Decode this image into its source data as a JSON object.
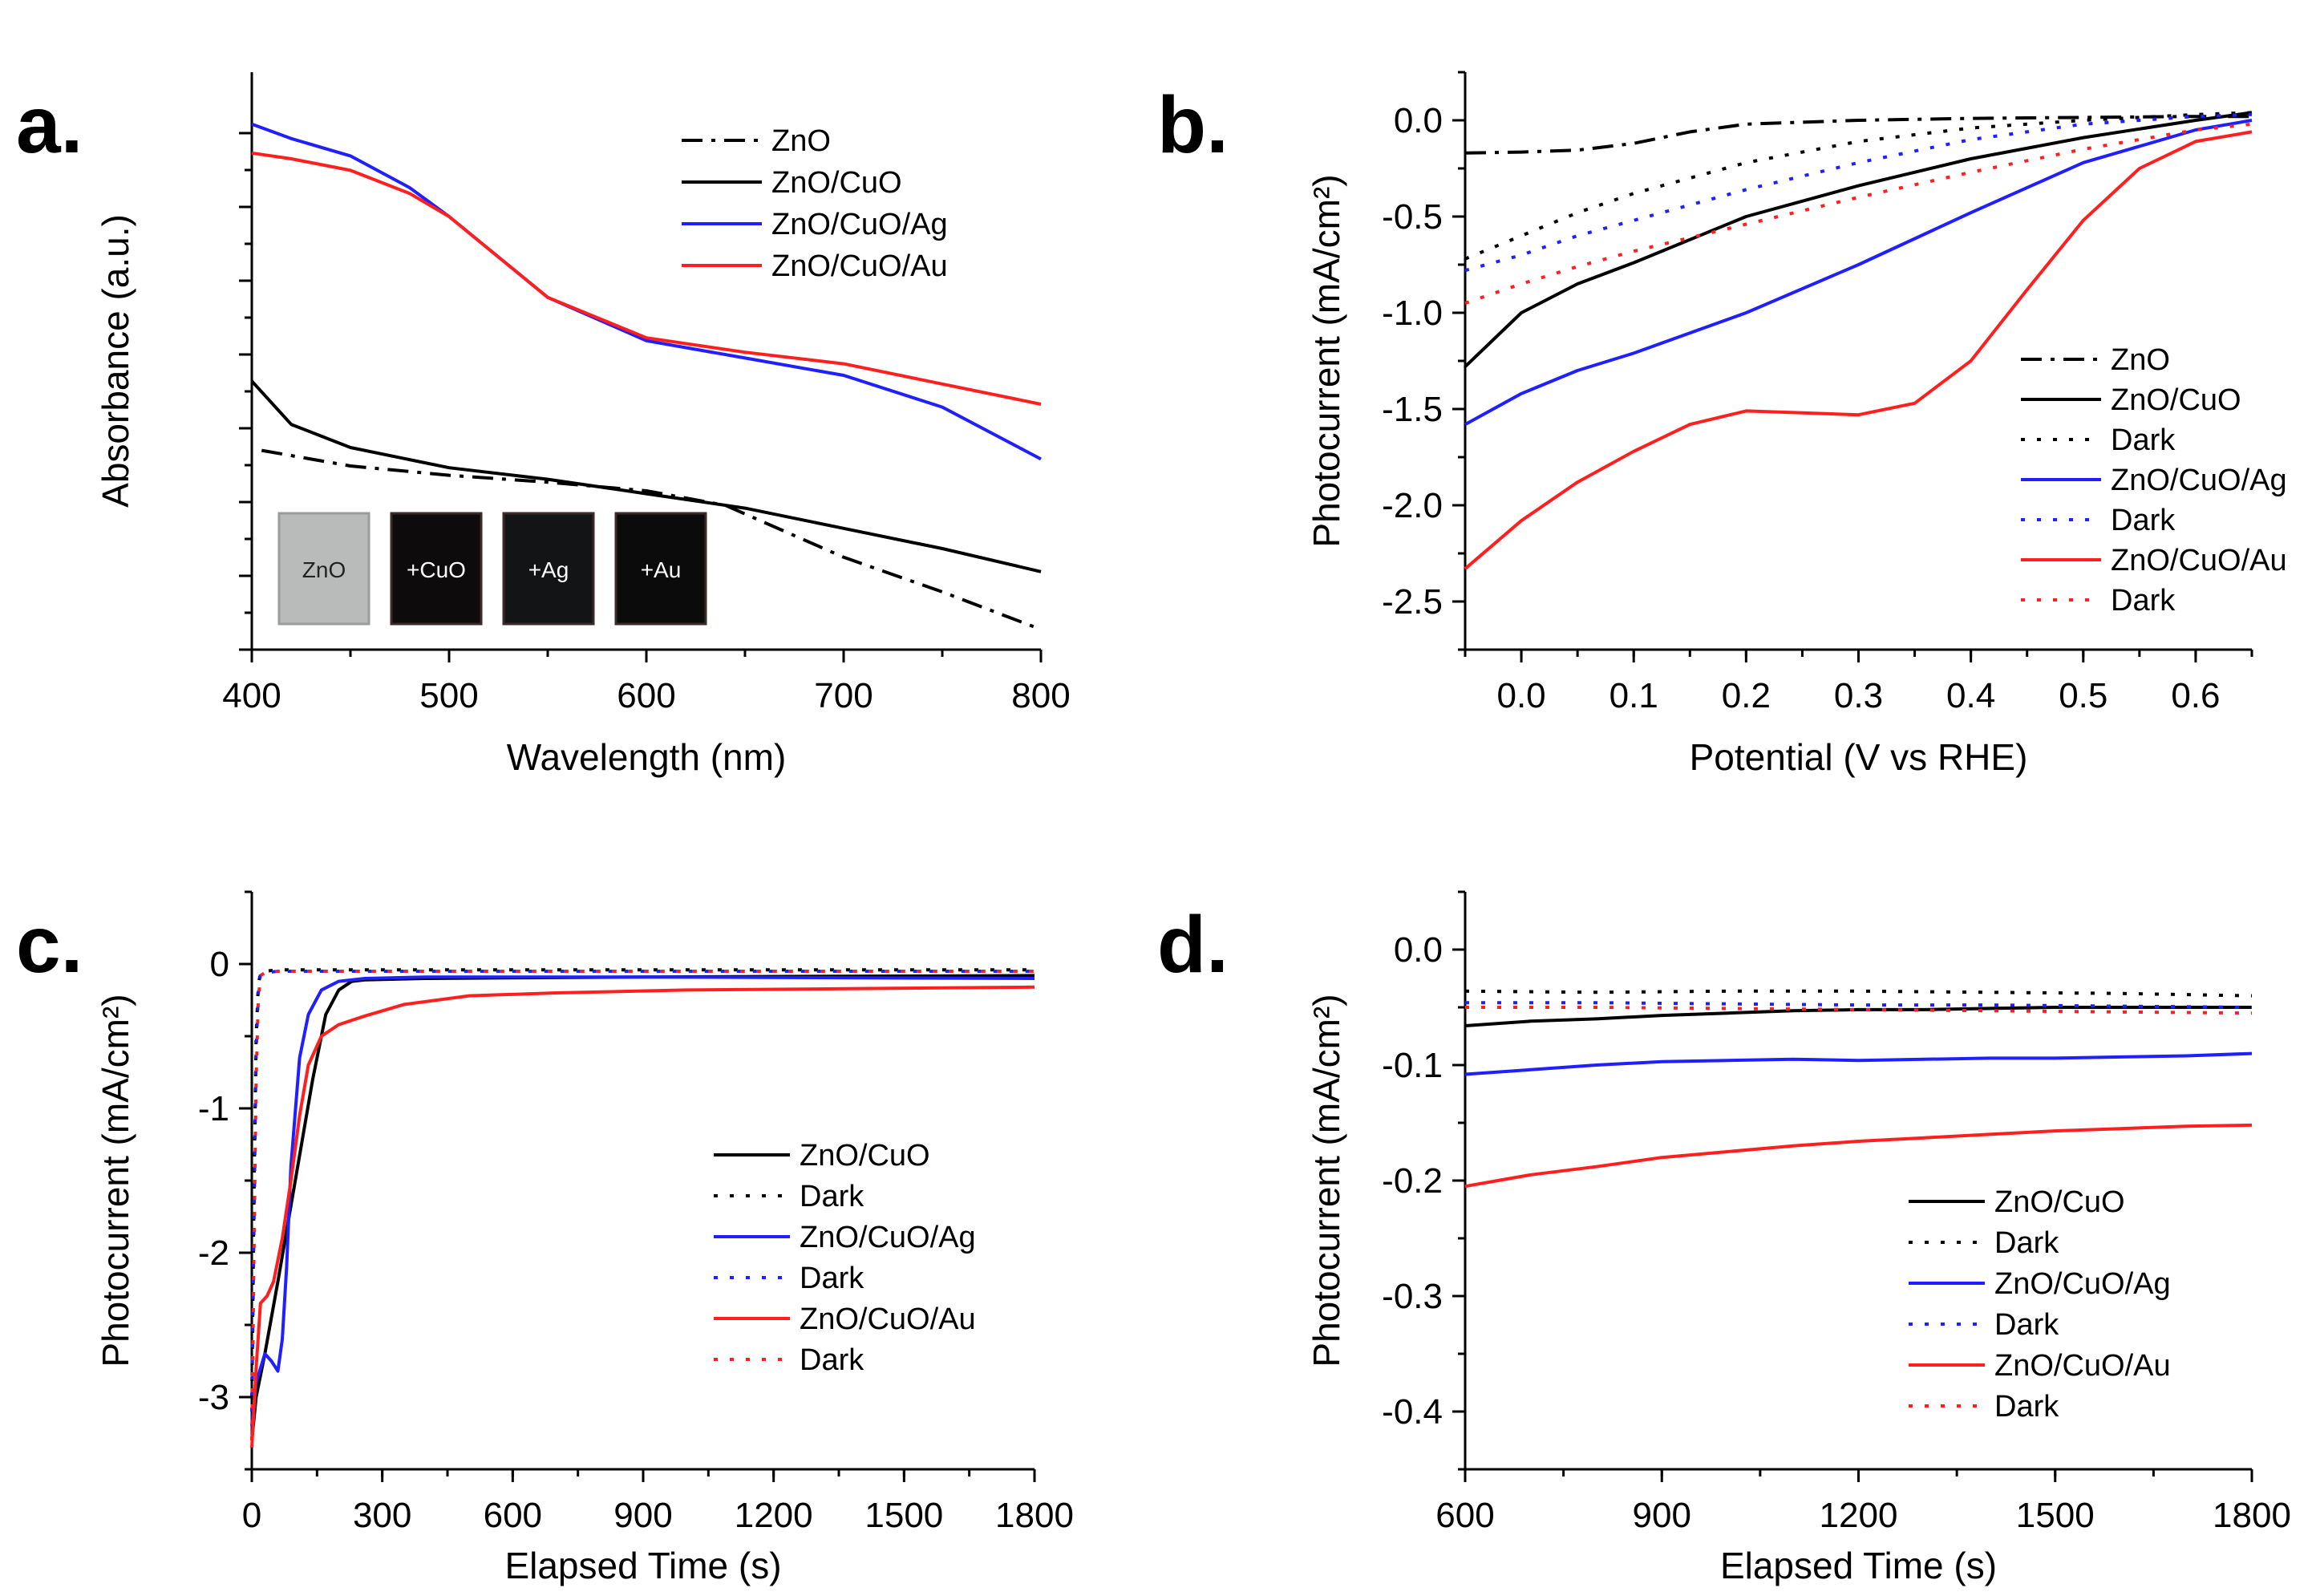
{
  "chart_data": [
    {
      "panel": "a.",
      "type": "line",
      "xlabel": "Wavelength (nm)",
      "ylabel": "Absorbance (a.u.)",
      "xlim": [
        400,
        800
      ],
      "ylim": [
        0,
        1
      ],
      "xticks": [
        "400",
        "500",
        "600",
        "700",
        "800"
      ],
      "show_y_tick_labels": false,
      "legend": "top-right",
      "series": [
        {
          "name": "ZnO",
          "color": "#000000",
          "dash": "dashdot",
          "x": [
            405,
            450,
            500,
            550,
            600,
            640,
            670,
            700,
            750,
            800
          ],
          "y": [
            0.345,
            0.318,
            0.302,
            0.29,
            0.275,
            0.25,
            0.205,
            0.16,
            0.1,
            0.035
          ]
        },
        {
          "name": "ZnO/CuO",
          "color": "#000000",
          "dash": "solid",
          "x": [
            400,
            420,
            450,
            500,
            550,
            600,
            650,
            700,
            750,
            800
          ],
          "y": [
            0.465,
            0.39,
            0.35,
            0.315,
            0.295,
            0.27,
            0.245,
            0.21,
            0.175,
            0.135
          ]
        },
        {
          "name": "ZnO/CuO/Ag",
          "color": "#1f1fff",
          "dash": "solid",
          "x": [
            400,
            420,
            450,
            480,
            500,
            550,
            600,
            650,
            700,
            750,
            800
          ],
          "y": [
            0.91,
            0.885,
            0.855,
            0.8,
            0.75,
            0.61,
            0.535,
            0.505,
            0.475,
            0.42,
            0.33
          ]
        },
        {
          "name": "ZnO/CuO/Au",
          "color": "#ff1f1f",
          "dash": "solid",
          "x": [
            400,
            420,
            450,
            480,
            500,
            550,
            600,
            650,
            700,
            750,
            800
          ],
          "y": [
            0.86,
            0.85,
            0.83,
            0.79,
            0.75,
            0.61,
            0.54,
            0.515,
            0.495,
            0.46,
            0.425
          ]
        }
      ],
      "inset_labels": [
        "ZnO",
        "+CuO",
        "+Ag",
        "+Au"
      ]
    },
    {
      "panel": "b.",
      "type": "line",
      "xlabel": "Potential (V vs RHE)",
      "ylabel": "Photocurrent (mA/cm²)",
      "xlim": [
        -0.05,
        0.65
      ],
      "ylim": [
        -2.75,
        0.25
      ],
      "xticks": [
        "0.0",
        "0.1",
        "0.2",
        "0.3",
        "0.4",
        "0.5",
        "0.6"
      ],
      "yticks": [
        "0.0",
        "-0.5",
        "-1.0",
        "-1.5",
        "-2.0",
        "-2.5"
      ],
      "legend": "bottom-right",
      "series": [
        {
          "name": "ZnO",
          "color": "#000000",
          "dash": "dashdot",
          "x": [
            -0.05,
            0.0,
            0.05,
            0.1,
            0.15,
            0.2,
            0.25,
            0.3,
            0.4,
            0.5,
            0.6,
            0.65
          ],
          "y": [
            -0.17,
            -0.165,
            -0.155,
            -0.12,
            -0.06,
            -0.02,
            -0.01,
            0.0,
            0.01,
            0.015,
            0.02,
            0.02
          ]
        },
        {
          "name": "ZnO/CuO",
          "color": "#000000",
          "dash": "solid",
          "x": [
            -0.05,
            0.0,
            0.05,
            0.1,
            0.2,
            0.3,
            0.4,
            0.5,
            0.6,
            0.65
          ],
          "y": [
            -1.28,
            -1.0,
            -0.85,
            -0.74,
            -0.5,
            -0.34,
            -0.2,
            -0.09,
            0.0,
            0.04
          ]
        },
        {
          "name": "Dark",
          "color": "#000000",
          "dash": "dot",
          "x": [
            -0.05,
            0.0,
            0.05,
            0.1,
            0.2,
            0.3,
            0.4,
            0.5,
            0.6,
            0.65
          ],
          "y": [
            -0.72,
            -0.6,
            -0.48,
            -0.38,
            -0.22,
            -0.11,
            -0.04,
            0.0,
            0.03,
            0.04
          ]
        },
        {
          "name": "ZnO/CuO/Ag",
          "color": "#1f1fff",
          "dash": "solid",
          "x": [
            -0.05,
            0.0,
            0.05,
            0.1,
            0.2,
            0.3,
            0.4,
            0.5,
            0.6,
            0.65
          ],
          "y": [
            -1.58,
            -1.42,
            -1.3,
            -1.21,
            -1.0,
            -0.75,
            -0.48,
            -0.22,
            -0.05,
            0.0
          ]
        },
        {
          "name": "Dark",
          "color": "#1f1fff",
          "dash": "dot",
          "x": [
            -0.05,
            0.0,
            0.05,
            0.1,
            0.2,
            0.3,
            0.4,
            0.5,
            0.6,
            0.65
          ],
          "y": [
            -0.78,
            -0.7,
            -0.6,
            -0.52,
            -0.36,
            -0.22,
            -0.1,
            -0.02,
            0.02,
            0.03
          ]
        },
        {
          "name": "ZnO/CuO/Au",
          "color": "#ff1f1f",
          "dash": "solid",
          "x": [
            -0.05,
            0.0,
            0.05,
            0.1,
            0.15,
            0.2,
            0.25,
            0.3,
            0.35,
            0.4,
            0.45,
            0.5,
            0.55,
            0.6,
            0.65
          ],
          "y": [
            -2.33,
            -2.08,
            -1.88,
            -1.72,
            -1.58,
            -1.51,
            -1.52,
            -1.53,
            -1.47,
            -1.25,
            -0.88,
            -0.52,
            -0.25,
            -0.11,
            -0.06
          ]
        },
        {
          "name": "Dark",
          "color": "#ff1f1f",
          "dash": "dot",
          "x": [
            -0.05,
            0.0,
            0.05,
            0.1,
            0.2,
            0.3,
            0.4,
            0.5,
            0.6,
            0.65
          ],
          "y": [
            -0.95,
            -0.85,
            -0.76,
            -0.68,
            -0.54,
            -0.4,
            -0.27,
            -0.15,
            -0.05,
            -0.02
          ]
        }
      ]
    },
    {
      "panel": "c.",
      "type": "line",
      "xlabel": "Elapsed Time (s)",
      "ylabel": "Photocurrent (mA/cm²)",
      "xlim": [
        0,
        1800
      ],
      "ylim": [
        -3.5,
        0.5
      ],
      "xticks": [
        "0",
        "300",
        "600",
        "900",
        "1200",
        "1500",
        "1800"
      ],
      "yticks": [
        "0",
        "-1",
        "-2",
        "-3"
      ],
      "legend": "bottom-right",
      "series": [
        {
          "name": "ZnO/CuO",
          "color": "#000000",
          "dash": "solid",
          "x": [
            0,
            10,
            30,
            60,
            100,
            140,
            170,
            200,
            230,
            260,
            400,
            900,
            1800
          ],
          "y": [
            -3.3,
            -3.0,
            -2.7,
            -2.2,
            -1.5,
            -0.8,
            -0.35,
            -0.18,
            -0.12,
            -0.11,
            -0.1,
            -0.09,
            -0.08
          ]
        },
        {
          "name": "Dark",
          "color": "#000000",
          "dash": "dot",
          "x": [
            0,
            5,
            10,
            15,
            20,
            30,
            60,
            1800
          ],
          "y": [
            -3.0,
            -1.6,
            -0.5,
            -0.15,
            -0.06,
            -0.05,
            -0.04,
            -0.04
          ]
        },
        {
          "name": "ZnO/CuO/Ag",
          "color": "#1f1fff",
          "dash": "solid",
          "x": [
            0,
            10,
            30,
            45,
            60,
            70,
            80,
            90,
            110,
            130,
            160,
            200,
            260,
            400,
            900,
            1800
          ],
          "y": [
            -3.2,
            -2.9,
            -2.7,
            -2.75,
            -2.82,
            -2.6,
            -2.1,
            -1.4,
            -0.65,
            -0.35,
            -0.18,
            -0.12,
            -0.1,
            -0.09,
            -0.09,
            -0.1
          ]
        },
        {
          "name": "Dark",
          "color": "#1f1fff",
          "dash": "dot",
          "x": [
            0,
            5,
            10,
            15,
            20,
            30,
            60,
            1800
          ],
          "y": [
            -3.1,
            -1.8,
            -0.6,
            -0.2,
            -0.07,
            -0.06,
            -0.05,
            -0.05
          ]
        },
        {
          "name": "ZnO/CuO/Au",
          "color": "#ff1f1f",
          "dash": "solid",
          "x": [
            0,
            10,
            20,
            35,
            50,
            70,
            90,
            110,
            130,
            160,
            200,
            260,
            350,
            500,
            700,
            1000,
            1400,
            1800
          ],
          "y": [
            -3.35,
            -2.8,
            -2.35,
            -2.3,
            -2.2,
            -1.9,
            -1.5,
            -1.05,
            -0.7,
            -0.5,
            -0.42,
            -0.36,
            -0.28,
            -0.22,
            -0.2,
            -0.18,
            -0.17,
            -0.16
          ]
        },
        {
          "name": "Dark",
          "color": "#ff1f1f",
          "dash": "dot",
          "x": [
            0,
            5,
            10,
            15,
            20,
            30,
            60,
            1800
          ],
          "y": [
            -3.3,
            -2.0,
            -0.8,
            -0.25,
            -0.08,
            -0.06,
            -0.05,
            -0.05
          ]
        }
      ]
    },
    {
      "panel": "d.",
      "type": "line",
      "xlabel": "Elapsed Time (s)",
      "ylabel": "Photocurrent (mA/cm²)",
      "xlim": [
        600,
        1800
      ],
      "ylim": [
        -0.45,
        0.05
      ],
      "xticks": [
        "600",
        "900",
        "1200",
        "1500",
        "1800"
      ],
      "yticks": [
        "0.0",
        "-0.1",
        "-0.2",
        "-0.3",
        "-0.4"
      ],
      "legend": "bottom-right",
      "series": [
        {
          "name": "ZnO/CuO",
          "color": "#000000",
          "dash": "solid",
          "x": [
            600,
            700,
            800,
            900,
            1000,
            1100,
            1200,
            1300,
            1400,
            1500,
            1600,
            1700,
            1800
          ],
          "y": [
            -0.066,
            -0.062,
            -0.06,
            -0.057,
            -0.055,
            -0.053,
            -0.052,
            -0.052,
            -0.051,
            -0.05,
            -0.05,
            -0.05,
            -0.05
          ]
        },
        {
          "name": "Dark",
          "color": "#000000",
          "dash": "dot",
          "x": [
            600,
            800,
            1000,
            1200,
            1400,
            1600,
            1800
          ],
          "y": [
            -0.036,
            -0.037,
            -0.036,
            -0.036,
            -0.037,
            -0.038,
            -0.04
          ]
        },
        {
          "name": "ZnO/CuO/Ag",
          "color": "#1f1fff",
          "dash": "solid",
          "x": [
            600,
            700,
            800,
            900,
            1000,
            1100,
            1200,
            1300,
            1400,
            1500,
            1600,
            1700,
            1800
          ],
          "y": [
            -0.108,
            -0.104,
            -0.1,
            -0.097,
            -0.096,
            -0.095,
            -0.096,
            -0.095,
            -0.094,
            -0.094,
            -0.093,
            -0.092,
            -0.09
          ]
        },
        {
          "name": "Dark",
          "color": "#1f1fff",
          "dash": "dot",
          "x": [
            600,
            800,
            1000,
            1200,
            1400,
            1600,
            1800
          ],
          "y": [
            -0.046,
            -0.046,
            -0.047,
            -0.048,
            -0.048,
            -0.049,
            -0.05
          ]
        },
        {
          "name": "ZnO/CuO/Au",
          "color": "#ff1f1f",
          "dash": "solid",
          "x": [
            600,
            650,
            700,
            800,
            900,
            1000,
            1100,
            1200,
            1300,
            1400,
            1500,
            1600,
            1700,
            1800
          ],
          "y": [
            -0.205,
            -0.2,
            -0.195,
            -0.188,
            -0.18,
            -0.175,
            -0.17,
            -0.166,
            -0.163,
            -0.16,
            -0.157,
            -0.155,
            -0.153,
            -0.152
          ]
        },
        {
          "name": "Dark",
          "color": "#ff1f1f",
          "dash": "dot",
          "x": [
            600,
            800,
            1000,
            1200,
            1400,
            1600,
            1800
          ],
          "y": [
            -0.05,
            -0.05,
            -0.051,
            -0.052,
            -0.053,
            -0.054,
            -0.055
          ]
        }
      ]
    }
  ]
}
